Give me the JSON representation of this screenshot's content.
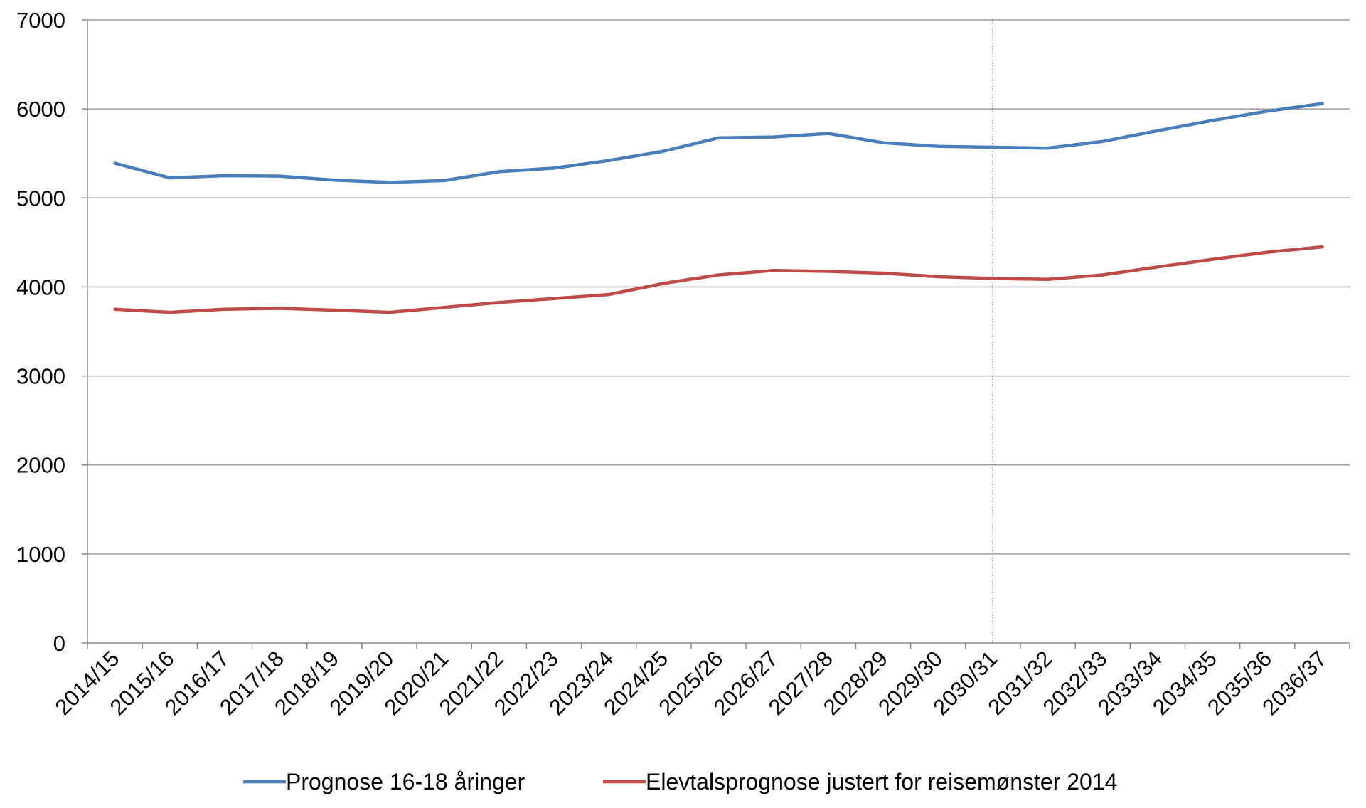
{
  "chart_data": {
    "type": "line",
    "categories": [
      "2014/15",
      "2015/16",
      "2016/17",
      "2017/18",
      "2018/19",
      "2019/20",
      "2020/21",
      "2021/22",
      "2022/23",
      "2023/24",
      "2024/25",
      "2025/26",
      "2026/27",
      "2027/28",
      "2028/29",
      "2029/30",
      "2030/31",
      "2031/32",
      "2032/33",
      "2033/34",
      "2034/35",
      "2035/36",
      "2036/37"
    ],
    "series": [
      {
        "name": "Prognose 16-18 åringer",
        "color": "#4a7ebb",
        "values": [
          5390,
          5225,
          5250,
          5245,
          5200,
          5175,
          5195,
          5295,
          5335,
          5420,
          5525,
          5675,
          5685,
          5725,
          5620,
          5580,
          5570,
          5560,
          5635,
          5755,
          5870,
          5975,
          6060
        ]
      },
      {
        "name": "Elevtalsprognose justert for reisemønster 2014",
        "color": "#be4b48",
        "values": [
          3750,
          3715,
          3750,
          3760,
          3740,
          3715,
          3770,
          3825,
          3870,
          3915,
          4040,
          4135,
          4185,
          4175,
          4155,
          4115,
          4095,
          4085,
          4135,
          4225,
          4310,
          4390,
          4450
        ]
      }
    ],
    "y_ticks": [
      "0",
      "1000",
      "2000",
      "3000",
      "4000",
      "5000",
      "6000",
      "7000"
    ],
    "ylim": [
      0,
      7000
    ],
    "grid": true,
    "reference_line_category": "2030/31",
    "legend_position": "bottom",
    "title": "",
    "xlabel": "",
    "ylabel": ""
  }
}
